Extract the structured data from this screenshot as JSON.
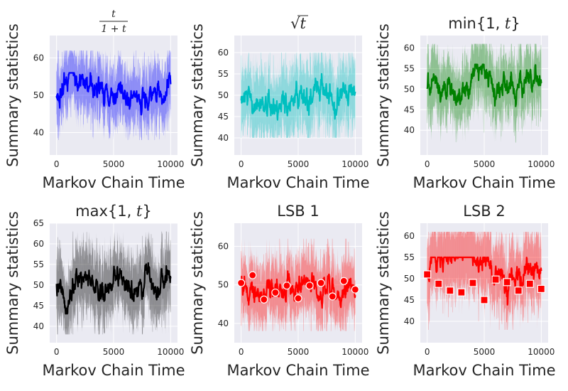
{
  "chart_data": [
    {
      "type": "line",
      "title": "t/(1+t)",
      "title_parts": {
        "numerator": "t",
        "denominator": "1 + t"
      },
      "xlabel": "Markov Chain Time",
      "ylabel": "Summary statistics",
      "xlim": [
        -600,
        10600
      ],
      "ylim": [
        34,
        66
      ],
      "xticks": [
        0,
        5000,
        10000
      ],
      "yticks": [
        40,
        50,
        60
      ],
      "color": "#0000ff",
      "series_mean": 50,
      "band_low": 38,
      "band_high": 62,
      "line_low": 43,
      "line_high": 56,
      "markers": null
    },
    {
      "type": "line",
      "title": "√t",
      "title_parts": {
        "radical": "√",
        "symbol": "t"
      },
      "xlabel": "Markov Chain Time",
      "ylabel": "Summary statistics",
      "xlim": [
        -600,
        10600
      ],
      "ylim": [
        36,
        64
      ],
      "xticks": [
        0,
        5000,
        10000
      ],
      "yticks": [
        40,
        45,
        50,
        55,
        60
      ],
      "color": "#00bfbf",
      "series_mean": 50,
      "band_low": 40,
      "band_high": 60,
      "line_low": 43,
      "line_high": 56,
      "markers": null
    },
    {
      "type": "line",
      "title": "min{1, t}",
      "title_parts": {
        "func": "min",
        "open": "{1, ",
        "symbol": "t",
        "close": "}"
      },
      "xlabel": "Markov Chain Time",
      "ylabel": "Summary statistics",
      "xlim": [
        -600,
        10600
      ],
      "ylim": [
        34,
        63
      ],
      "xticks": [
        0,
        5000,
        10000
      ],
      "yticks": [
        40,
        45,
        50,
        55,
        60
      ],
      "color": "#008000",
      "series_mean": 50,
      "band_low": 37,
      "band_high": 61,
      "line_low": 42,
      "line_high": 56,
      "markers": null
    },
    {
      "type": "line",
      "title": "max{1, t}",
      "title_parts": {
        "func": "max",
        "open": "{1, ",
        "symbol": "t",
        "close": "}"
      },
      "xlabel": "Markov Chain Time",
      "ylabel": "Summary statistics",
      "xlim": [
        -600,
        10600
      ],
      "ylim": [
        36,
        65
      ],
      "xticks": [
        0,
        5000,
        10000
      ],
      "yticks": [
        40,
        45,
        50,
        55,
        60,
        65
      ],
      "color": "#000000",
      "series_mean": 50,
      "band_low": 38,
      "band_high": 63,
      "line_low": 43,
      "line_high": 57,
      "markers": null
    },
    {
      "type": "line",
      "title": "LSB 1",
      "xlabel": "Markov Chain Time",
      "ylabel": "Summary statistics",
      "xlim": [
        -600,
        10600
      ],
      "ylim": [
        35,
        66
      ],
      "xticks": [
        0,
        5000,
        10000
      ],
      "yticks": [
        40,
        50,
        60
      ],
      "color": "#ff0000",
      "series_mean": 49,
      "band_low": 38,
      "band_high": 62,
      "line_low": 44,
      "line_high": 55,
      "marker_shape": "circle",
      "markers": {
        "x": [
          0,
          1000,
          2000,
          3000,
          4000,
          5000,
          6000,
          7000,
          8000,
          9000,
          10000
        ],
        "y": [
          50.5,
          52.5,
          46.2,
          48,
          49.8,
          46.5,
          49.8,
          50.5,
          47,
          51,
          48.8
        ]
      }
    },
    {
      "type": "line",
      "title": "LSB 2",
      "xlabel": "Markov Chain Time",
      "ylabel": "Summary statistics",
      "xlim": [
        -600,
        10600
      ],
      "ylim": [
        35,
        63
      ],
      "xticks": [
        0,
        5000,
        10000
      ],
      "yticks": [
        40,
        45,
        50,
        55,
        60
      ],
      "color": "#ff0000",
      "series_mean": 49,
      "band_low": 38,
      "band_high": 61,
      "line_low": 43,
      "line_high": 55,
      "marker_shape": "square",
      "markers": {
        "x": [
          0,
          1000,
          2000,
          3000,
          4000,
          5000,
          6000,
          7000,
          8000,
          9000,
          10000
        ],
        "y": [
          51,
          48.8,
          47.2,
          46.8,
          49,
          45,
          49.8,
          49.2,
          47.2,
          48.8,
          47.6
        ]
      }
    }
  ]
}
